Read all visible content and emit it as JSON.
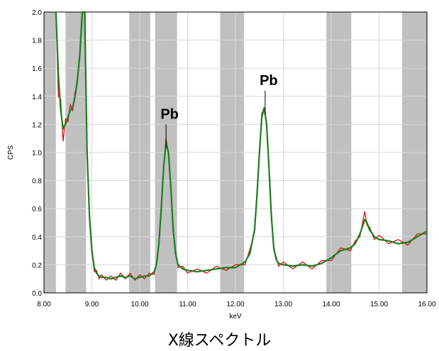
{
  "chart_data": {
    "type": "line",
    "xlabel": "keV",
    "ylabel": "CPS",
    "xlim": [
      8.0,
      16.0
    ],
    "ylim": [
      0.0,
      2.0
    ],
    "x_ticks": [
      8.0,
      9.0,
      10.0,
      11.0,
      12.0,
      13.0,
      14.0,
      15.0,
      16.0
    ],
    "x_tick_labels": [
      "8.00",
      "9.00",
      "10.00",
      "11.00",
      "12.00",
      "13.00",
      "14.00",
      "15.00",
      "16.00"
    ],
    "y_ticks": [
      0.0,
      0.2,
      0.4,
      0.6,
      0.8,
      1.0,
      1.2,
      1.4,
      1.6,
      1.8,
      2.0
    ],
    "y_tick_labels": [
      "0.0",
      "0.2",
      "0.4",
      "0.6",
      "0.8",
      "1.0",
      "1.2",
      "1.4",
      "1.6",
      "1.8",
      "2.0"
    ],
    "grid": true,
    "annotations": [
      {
        "text": "Pb",
        "x": 10.55,
        "y": 1.2
      },
      {
        "text": "Pb",
        "x": 12.62,
        "y": 1.44
      }
    ],
    "shaded_regions": [
      [
        8.0,
        8.25
      ],
      [
        8.45,
        8.88
      ],
      [
        9.78,
        10.22
      ],
      [
        10.32,
        10.78
      ],
      [
        11.68,
        12.18
      ],
      [
        13.9,
        14.42
      ],
      [
        15.48,
        16.0
      ]
    ],
    "series": [
      {
        "color": "#1e7d1e",
        "x": [
          8.25,
          8.3,
          8.35,
          8.4,
          8.45,
          8.5,
          8.55,
          8.6,
          8.65,
          8.7,
          8.75,
          8.8,
          8.85,
          8.9,
          8.95,
          9.0,
          9.05,
          9.1,
          9.15,
          9.2,
          9.3,
          9.4,
          9.5,
          9.6,
          9.7,
          9.8,
          9.9,
          10.0,
          10.1,
          10.2,
          10.3,
          10.35,
          10.4,
          10.45,
          10.5,
          10.55,
          10.6,
          10.65,
          10.7,
          10.75,
          10.8,
          10.9,
          11.0,
          11.2,
          11.4,
          11.6,
          11.8,
          12.0,
          12.2,
          12.3,
          12.4,
          12.45,
          12.5,
          12.55,
          12.6,
          12.65,
          12.7,
          12.75,
          12.8,
          12.85,
          12.9,
          13.0,
          13.2,
          13.4,
          13.6,
          13.8,
          14.0,
          14.2,
          14.4,
          14.5,
          14.6,
          14.7,
          14.75,
          14.8,
          14.9,
          15.0,
          15.2,
          15.4,
          15.6,
          15.8,
          16.0
        ],
        "y": [
          2.0,
          1.55,
          1.3,
          1.17,
          1.2,
          1.25,
          1.3,
          1.32,
          1.4,
          1.52,
          1.7,
          2.0,
          2.0,
          1.0,
          0.55,
          0.3,
          0.18,
          0.14,
          0.12,
          0.11,
          0.11,
          0.1,
          0.11,
          0.12,
          0.11,
          0.12,
          0.1,
          0.11,
          0.12,
          0.12,
          0.15,
          0.2,
          0.35,
          0.6,
          0.9,
          1.07,
          1.0,
          0.75,
          0.45,
          0.28,
          0.2,
          0.17,
          0.16,
          0.15,
          0.16,
          0.17,
          0.18,
          0.18,
          0.22,
          0.28,
          0.45,
          0.7,
          1.0,
          1.25,
          1.32,
          1.2,
          0.9,
          0.55,
          0.32,
          0.24,
          0.21,
          0.2,
          0.19,
          0.2,
          0.19,
          0.21,
          0.25,
          0.3,
          0.32,
          0.35,
          0.42,
          0.52,
          0.5,
          0.45,
          0.4,
          0.38,
          0.37,
          0.35,
          0.36,
          0.4,
          0.44
        ]
      },
      {
        "color": "#e00000",
        "x": [
          8.25,
          8.3,
          8.35,
          8.4,
          8.45,
          8.5,
          8.55,
          8.6,
          8.65,
          8.7,
          8.75,
          8.8,
          8.85,
          8.9,
          8.95,
          9.0,
          9.05,
          9.1,
          9.15,
          9.2,
          9.3,
          9.4,
          9.5,
          9.6,
          9.7,
          9.8,
          9.9,
          10.0,
          10.1,
          10.2,
          10.3,
          10.35,
          10.4,
          10.45,
          10.5,
          10.55,
          10.6,
          10.65,
          10.7,
          10.75,
          10.8,
          10.9,
          11.0,
          11.2,
          11.4,
          11.6,
          11.8,
          12.0,
          12.2,
          12.3,
          12.4,
          12.45,
          12.5,
          12.55,
          12.6,
          12.65,
          12.7,
          12.75,
          12.8,
          12.85,
          12.9,
          13.0,
          13.2,
          13.4,
          13.6,
          13.8,
          14.0,
          14.2,
          14.4,
          14.5,
          14.6,
          14.7,
          14.75,
          14.8,
          14.9,
          15.0,
          15.2,
          15.4,
          15.6,
          15.8,
          16.0
        ],
        "y": [
          2.0,
          1.4,
          1.38,
          1.08,
          1.24,
          1.22,
          1.34,
          1.3,
          1.43,
          1.5,
          1.73,
          2.0,
          2.0,
          1.05,
          0.52,
          0.33,
          0.15,
          0.16,
          0.1,
          0.13,
          0.09,
          0.12,
          0.09,
          0.14,
          0.1,
          0.14,
          0.09,
          0.13,
          0.1,
          0.14,
          0.13,
          0.22,
          0.33,
          0.63,
          0.88,
          1.1,
          0.98,
          0.78,
          0.43,
          0.3,
          0.18,
          0.19,
          0.14,
          0.17,
          0.14,
          0.19,
          0.16,
          0.2,
          0.2,
          0.31,
          0.43,
          0.73,
          0.98,
          1.28,
          1.31,
          1.22,
          0.88,
          0.58,
          0.3,
          0.26,
          0.19,
          0.22,
          0.17,
          0.22,
          0.17,
          0.23,
          0.23,
          0.32,
          0.3,
          0.37,
          0.4,
          0.58,
          0.48,
          0.47,
          0.38,
          0.41,
          0.35,
          0.38,
          0.34,
          0.42,
          0.42
        ]
      }
    ]
  },
  "caption": "X線スペクトル"
}
